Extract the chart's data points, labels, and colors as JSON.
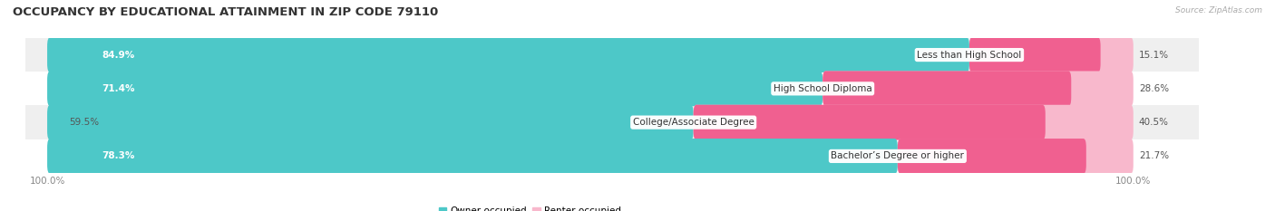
{
  "title": "OCCUPANCY BY EDUCATIONAL ATTAINMENT IN ZIP CODE 79110",
  "source": "Source: ZipAtlas.com",
  "categories": [
    "Less than High School",
    "High School Diploma",
    "College/Associate Degree",
    "Bachelor’s Degree or higher"
  ],
  "owner_values": [
    84.9,
    71.4,
    59.5,
    78.3
  ],
  "renter_values": [
    15.1,
    28.6,
    40.5,
    21.7
  ],
  "owner_color": "#4dc8c8",
  "owner_color_light": "#a8e4e4",
  "renter_color": "#f06090",
  "renter_color_light": "#f8b8cc",
  "row_bg_colors": [
    "#efefef",
    "#ffffff",
    "#efefef",
    "#ffffff"
  ],
  "title_fontsize": 9.5,
  "label_fontsize": 7.5,
  "tick_fontsize": 7.5,
  "legend_fontsize": 7.5,
  "source_fontsize": 6.5,
  "figsize": [
    14.06,
    2.33
  ],
  "dpi": 100
}
